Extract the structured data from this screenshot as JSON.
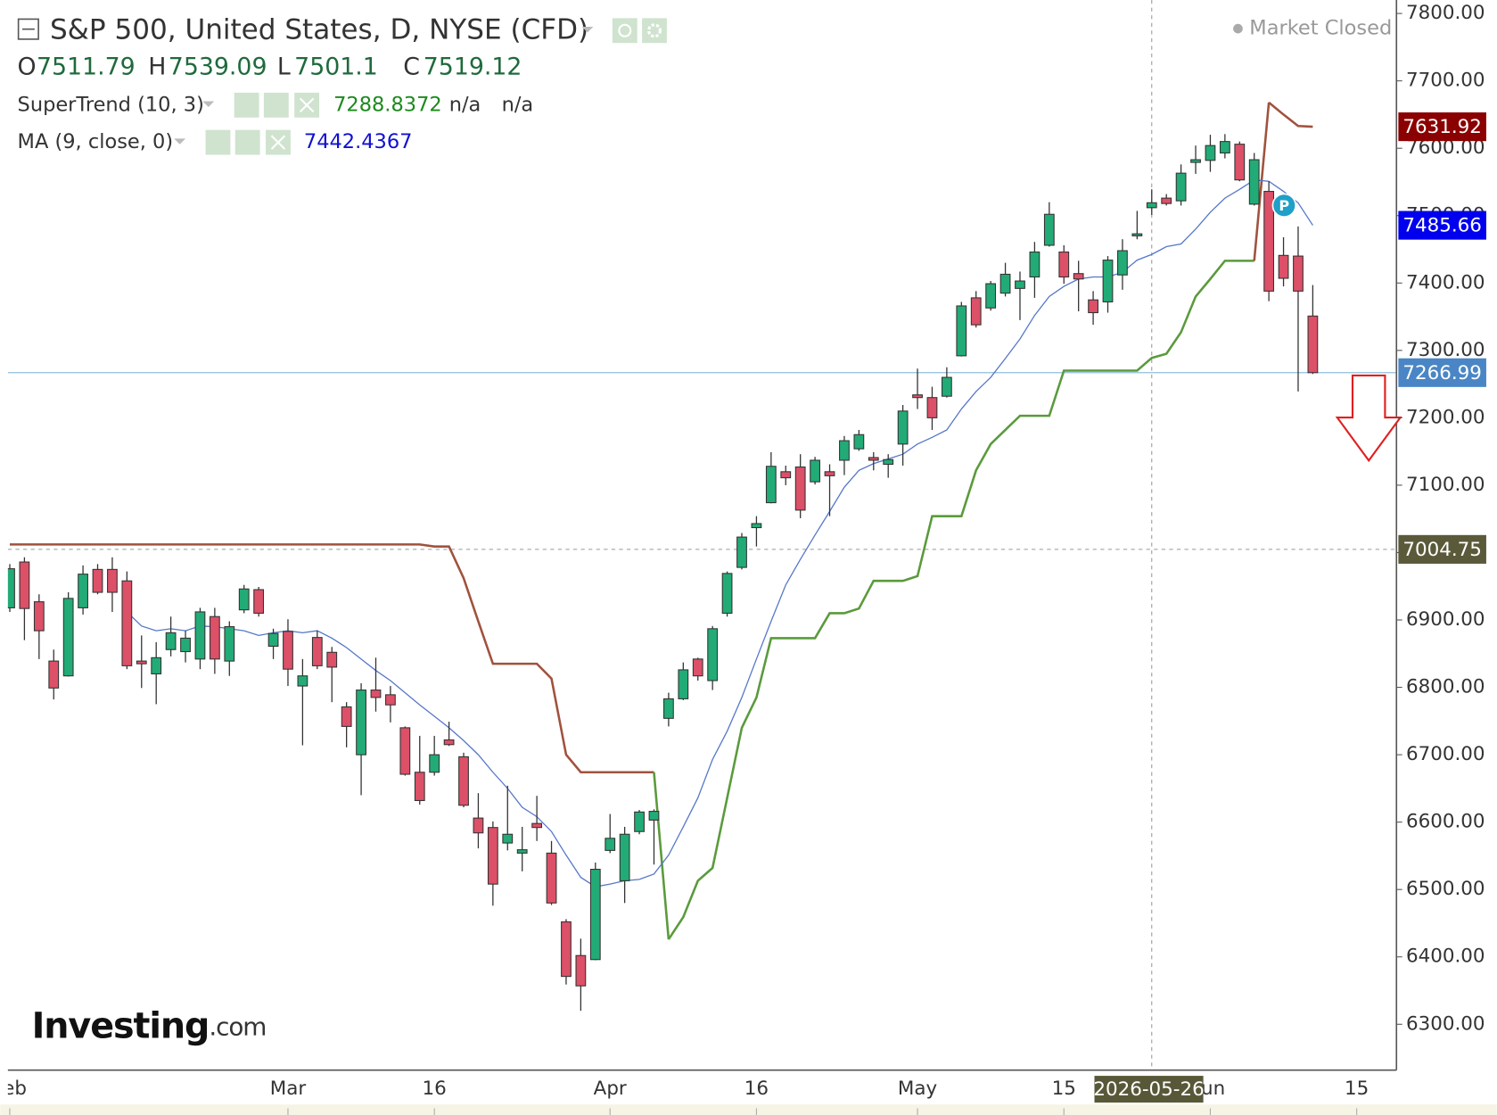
{
  "header": {
    "title": "S&P 500, United States, D, NYSE (CFD)",
    "ohlc_letters": [
      "O",
      "H",
      "L",
      "C"
    ],
    "na": [
      "n/a",
      "n/a"
    ],
    "status": "Market Closed"
  },
  "logo": {
    "brand": "Investing",
    "suffix": ".com"
  },
  "chart_data": {
    "type": "candlestick",
    "up_color": "#22ab76",
    "down_color": "#dc5068",
    "ylim": [
      6232,
      7820
    ],
    "yticks": [
      {
        "value": 7800,
        "label": "7800.00"
      },
      {
        "value": 7700,
        "label": "7700.00"
      },
      {
        "value": 7600,
        "label": "7600.00"
      },
      {
        "value": 7500,
        "label": "7500.00"
      },
      {
        "value": 7400,
        "label": "7400.00"
      },
      {
        "value": 7300,
        "label": "7300.00"
      },
      {
        "value": 7200,
        "label": "7200.00"
      },
      {
        "value": 7100,
        "label": "7100.00"
      },
      {
        "value": 7000,
        "label": "7000.00"
      },
      {
        "value": 6900,
        "label": "6900.00"
      },
      {
        "value": 6800,
        "label": "6800.00"
      },
      {
        "value": 6700,
        "label": "6700.00"
      },
      {
        "value": 6600,
        "label": "6600.00"
      },
      {
        "value": 6500,
        "label": "6500.00"
      },
      {
        "value": 6400,
        "label": "6400.00"
      },
      {
        "value": 6300,
        "label": "6300.00"
      }
    ],
    "xticks": [
      {
        "value": 0,
        "label": "Feb"
      },
      {
        "value": 19,
        "label": "Mar"
      },
      {
        "value": 29,
        "label": "16"
      },
      {
        "value": 41,
        "label": "Apr"
      },
      {
        "value": 51,
        "label": "16"
      },
      {
        "value": 62,
        "label": "May"
      },
      {
        "value": 72,
        "label": "15"
      },
      {
        "value": 82,
        "label": "Jun"
      },
      {
        "value": 92,
        "label": "15"
      }
    ],
    "open": [
      6918,
      6986,
      6927,
      6839,
      6817,
      6918,
      6975,
      6975,
      6958,
      6839,
      6820,
      6856,
      6853,
      6842,
      6905,
      6839,
      6915,
      6945,
      6861,
      6883,
      6802,
      6874,
      6852,
      6771,
      6700,
      6796,
      6789,
      6740,
      6674,
      6674,
      6722,
      6697,
      6606,
      6592,
      6569,
      6554,
      6598,
      6554,
      6452,
      6402,
      6396,
      6558,
      6513,
      6586,
      6603,
      6754,
      6783,
      6842,
      6810,
      6910,
      6978,
      7037,
      7074,
      7120,
      7127,
      7105,
      7120,
      7137,
      7154,
      7141,
      7131,
      7161,
      7234,
      7230,
      7232,
      7292,
      7378,
      7363,
      7385,
      7392,
      7409,
      7456,
      7446,
      7414,
      7375,
      7372,
      7412,
      7470,
      7511.79,
      7526,
      7522,
      7579,
      7582,
      7593,
      7606,
      7517,
      7536,
      7441,
      7440,
      7351
    ],
    "high": [
      6983,
      6993,
      6938,
      6856,
      6941,
      6981,
      6983,
      6993,
      6972,
      6877,
      6867,
      6905,
      6884,
      6918,
      6918,
      6898,
      6952,
      6949,
      6887,
      6901,
      6842,
      6884,
      6860,
      6778,
      6806,
      6844,
      6802,
      6742,
      6728,
      6728,
      6749,
      6703,
      6643,
      6601,
      6654,
      6593,
      6639,
      6572,
      6456,
      6427,
      6540,
      6612,
      6593,
      6618,
      6619,
      6792,
      6837,
      6844,
      6891,
      6972,
      7029,
      7054,
      7149,
      7129,
      7146,
      7142,
      7131,
      7173,
      7182,
      7149,
      7146,
      7219,
      7273,
      7246,
      7275,
      7372,
      7388,
      7403,
      7430,
      7417,
      7461,
      7520,
      7456,
      7433,
      7388,
      7440,
      7465,
      7507,
      7539.09,
      7532,
      7576,
      7604,
      7620,
      7621,
      7610,
      7593,
      7551,
      7468,
      7484,
      7397
    ],
    "low": [
      6912,
      6870,
      6842,
      6782,
      6816,
      6908,
      6938,
      6912,
      6827,
      6799,
      6775,
      6846,
      6837,
      6827,
      6820,
      6817,
      6910,
      6905,
      6842,
      6802,
      6714,
      6827,
      6778,
      6711,
      6640,
      6764,
      6748,
      6669,
      6626,
      6669,
      6713,
      6622,
      6561,
      6476,
      6558,
      6527,
      6572,
      6477,
      6359,
      6320,
      6395,
      6554,
      6480,
      6582,
      6537,
      6742,
      6781,
      6810,
      6796,
      6905,
      6975,
      7009,
      7073,
      7100,
      7051,
      7101,
      7054,
      7115,
      7151,
      7122,
      7111,
      7129,
      7213,
      7182,
      7230,
      7291,
      7334,
      7359,
      7380,
      7345,
      7378,
      7454,
      7399,
      7358,
      7338,
      7356,
      7390,
      7465,
      7501.1,
      7515,
      7515,
      7562,
      7565,
      7585,
      7551,
      7515,
      7373,
      7395,
      7239,
      7265
    ],
    "close": [
      6976,
      6917,
      6884,
      6799,
      6932,
      6968,
      6941,
      6941,
      6832,
      6835,
      6844,
      6881,
      6873,
      6912,
      6842,
      6890,
      6946,
      6910,
      6880,
      6827,
      6817,
      6832,
      6830,
      6742,
      6796,
      6785,
      6774,
      6671,
      6632,
      6700,
      6715,
      6625,
      6584,
      6508,
      6582,
      6559,
      6592,
      6480,
      6371,
      6357,
      6530,
      6576,
      6582,
      6615,
      6616,
      6783,
      6826,
      6817,
      6887,
      6969,
      7023,
      7043,
      7128,
      7111,
      7063,
      7137,
      7114,
      7166,
      7175,
      7137,
      7138,
      7210,
      7230,
      7200,
      7260,
      7366,
      7338,
      7399,
      7413,
      7403,
      7446,
      7502,
      7409,
      7406,
      7356,
      7434,
      7448,
      7473,
      7519.12,
      7518,
      7563,
      7583,
      7604,
      7610,
      7553,
      7583,
      7388,
      7407,
      7388,
      7266.99
    ],
    "indicators": [
      {
        "name": "SuperTrend (10, 3)",
        "lines": [
          {
            "color": "#a0523d",
            "values": [
              7012,
              7012,
              7012,
              7012,
              7012,
              7012,
              7012,
              7012,
              7012,
              7012,
              7012,
              7012,
              7012,
              7012,
              7012,
              7012,
              7012,
              7012,
              7012,
              7012,
              7012,
              7012,
              7012,
              7012,
              7012,
              7012,
              7012,
              7012,
              7012,
              7009,
              7009,
              6962,
              6898,
              6835,
              6835,
              6835,
              6835,
              6813,
              6700,
              6674,
              6674,
              6674,
              6674,
              6674,
              6674,
              null,
              null,
              null,
              null,
              null,
              null,
              null,
              null,
              null,
              null,
              null,
              null,
              null,
              null,
              null,
              null,
              null,
              null,
              null,
              null,
              null,
              null,
              null,
              null,
              null,
              null,
              null,
              null,
              null,
              null,
              null,
              null,
              null,
              null,
              null,
              null,
              null,
              null,
              null,
              null,
              null,
              7668,
              7650,
              7633,
              7631.92
            ]
          },
          {
            "color": "#5a9a3c",
            "values": [
              null,
              null,
              null,
              null,
              null,
              null,
              null,
              null,
              null,
              null,
              null,
              null,
              null,
              null,
              null,
              null,
              null,
              null,
              null,
              null,
              null,
              null,
              null,
              null,
              null,
              null,
              null,
              null,
              null,
              null,
              null,
              null,
              null,
              null,
              null,
              null,
              null,
              null,
              null,
              null,
              null,
              null,
              null,
              null,
              null,
              6426,
              6459,
              6513,
              6532,
              6636,
              6740,
              6785,
              6873,
              6873,
              6873,
              6873,
              6910,
              6910,
              6917,
              6958,
              6958,
              6958,
              6965,
              7054,
              7054,
              7054,
              7122,
              7161,
              7182,
              7203,
              7203,
              7203,
              7270,
              7270,
              7270,
              7270,
              7270,
              7270,
              7288.8372,
              7295,
              7327,
              7380,
              7406,
              7433,
              7433,
              7433,
              null,
              null,
              null,
              null
            ]
          }
        ]
      },
      {
        "name": "MA (9, close, 0)",
        "lines": [
          {
            "color": "#5577c8",
            "values": [
              null,
              null,
              null,
              null,
              null,
              null,
              null,
              null,
              6912,
              6891,
              6884,
              6887,
              6884,
              6891,
              6890,
              6887,
              6884,
              6877,
              6881,
              6884,
              6881,
              6884,
              6873,
              6859,
              6842,
              6825,
              6810,
              6792,
              6774,
              6757,
              6740,
              6721,
              6700,
              6674,
              6650,
              6622,
              6608,
              6586,
              6551,
              6518,
              6504,
              6508,
              6513,
              6515,
              6523,
              6551,
              6593,
              6636,
              6693,
              6735,
              6785,
              6842,
              6898,
              6952,
              6990,
              7026,
              7061,
              7097,
              7122,
              7132,
              7139,
              7146,
              7161,
              7171,
              7182,
              7213,
              7239,
              7260,
              7288,
              7317,
              7352,
              7380,
              7395,
              7406,
              7409,
              7409,
              7416,
              7434,
              7442.4367,
              7454,
              7458,
              7480,
              7505,
              7526,
              7539,
              7553,
              7551,
              7536,
              7519,
              7485.66
            ]
          }
        ]
      }
    ],
    "crosshair": {
      "date": "2026-05-26",
      "price": 7004.75
    },
    "marker": "P"
  }
}
